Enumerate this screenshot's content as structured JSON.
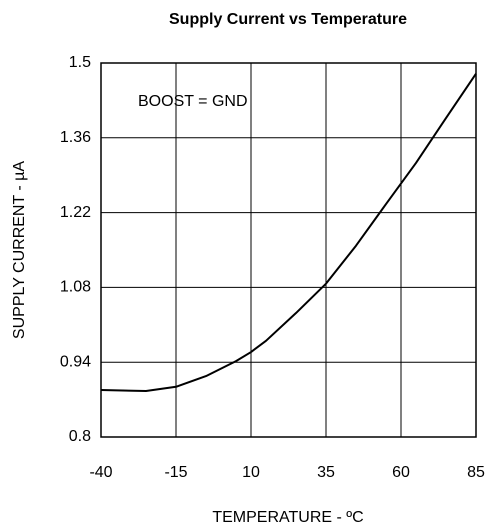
{
  "chart_data": {
    "type": "line",
    "title": "Supply Current vs Temperature",
    "x_label": "TEMPERATURE - ºC",
    "y_label": "SUPPLY CURRENT - µA",
    "annotation": "BOOST = GND",
    "x": [
      -40,
      -25,
      -15,
      -5,
      5,
      10,
      15,
      25,
      35,
      45,
      55,
      65,
      75,
      85
    ],
    "series": [
      {
        "name": "Supply Current",
        "color": "#000000",
        "values": [
          0.888,
          0.886,
          0.894,
          0.914,
          0.942,
          0.959,
          0.98,
          1.032,
          1.087,
          1.158,
          1.236,
          1.313,
          1.397,
          1.48
        ]
      }
    ],
    "xlim": [
      -40,
      85
    ],
    "xticks": [
      -40,
      -15,
      10,
      35,
      60,
      85
    ],
    "ylim": [
      0.8,
      1.5
    ],
    "yticks": [
      0.8,
      0.94,
      1.08,
      1.22,
      1.36,
      1.5
    ],
    "grid": true
  }
}
